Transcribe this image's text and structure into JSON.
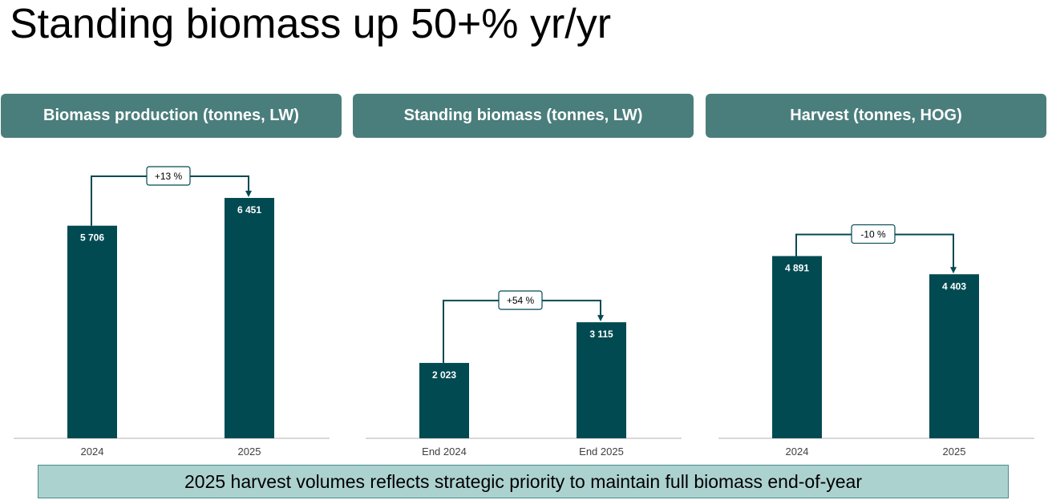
{
  "title": "Standing biomass up 50+% yr/yr",
  "colors": {
    "header_bg": "#4a7e7c",
    "bar": "#024a52",
    "footer_bg": "#acd2d0"
  },
  "chart_data": [
    {
      "type": "bar",
      "title": "Biomass production (tonnes, LW)",
      "categories": [
        "2024",
        "2025"
      ],
      "values": [
        5706,
        6451
      ],
      "value_labels": [
        "5 706",
        "6 451"
      ],
      "change_label": "+13 %"
    },
    {
      "type": "bar",
      "title": "Standing biomass (tonnes, LW)",
      "categories": [
        "End 2024",
        "End 2025"
      ],
      "values": [
        2023,
        3115
      ],
      "value_labels": [
        "2 023",
        "3 115"
      ],
      "change_label": "+54 %"
    },
    {
      "type": "bar",
      "title": "Harvest (tonnes, HOG)",
      "categories": [
        "2024",
        "2025"
      ],
      "values": [
        4891,
        4403
      ],
      "value_labels": [
        "4 891",
        "4 403"
      ],
      "change_label": "-10 %"
    }
  ],
  "footer": "2025 harvest volumes reflects strategic priority to maintain full biomass end-of-year"
}
